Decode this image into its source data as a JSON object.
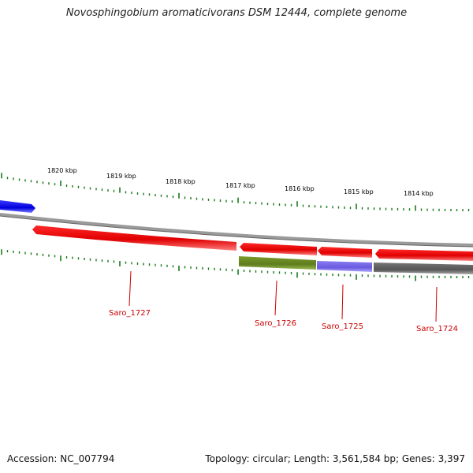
{
  "title": "Novosphingobium aromaticivorans DSM 12444, complete genome",
  "footer": {
    "accession": "Accession: NC_007794",
    "summary": "Topology: circular; Length: 3,561,584 bp; Genes: 3,397"
  },
  "ruler_labels": [
    "1820 kbp",
    "1819 kbp",
    "1818 kbp",
    "1817 kbp",
    "1816 kbp",
    "1815 kbp",
    "1814 kbp"
  ],
  "genes": [
    {
      "name": "Saro_1727",
      "color": "#e80000"
    },
    {
      "name": "Saro_1726",
      "color": "#e80000"
    },
    {
      "name": "Saro_1725",
      "color": "#e80000"
    },
    {
      "name": "Saro_1724",
      "color": "#e80000"
    }
  ],
  "colors": {
    "forward_gene": "#1a1aff",
    "reverse_gene": "#e80000",
    "backbone": "#888888",
    "tick": "#1a7a1a",
    "feature_olive": "#6b8e23",
    "feature_lavender": "#7b68ee",
    "feature_gray": "#666666",
    "label": "#cc0000"
  }
}
